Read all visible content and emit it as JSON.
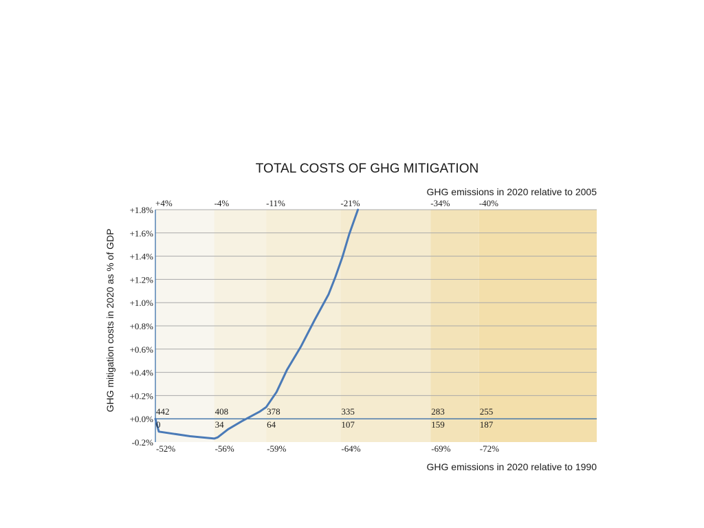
{
  "chart_data": {
    "type": "line",
    "title": "TOTAL COSTS OF GHG MITIGATION",
    "ylabel": "GHG mitigation costs in 2020 as % of GDP",
    "xlabel_top": "GHG emissions in 2020 relative to 2005",
    "xlabel_bottom": "GHG emissions in 2020 relative to 1990",
    "ylim": [
      -0.2,
      1.8
    ],
    "yticks": [
      "+1.8%",
      "+1.6%",
      "+1.4%",
      "+1.2%",
      "+1.0%",
      "+0.8%",
      "+0.6%",
      "+0.4%",
      "+0.2%",
      "+0.0%",
      "-0.2%"
    ],
    "ytick_values": [
      1.8,
      1.6,
      1.4,
      1.2,
      1.0,
      0.8,
      0.6,
      0.4,
      0.2,
      0.0,
      -0.2
    ],
    "xlim": [
      0,
      255
    ],
    "grid": true,
    "band_colors": [
      "#f8f6ef",
      "#f7f2e2",
      "#f6efd9",
      "#f5ebcf",
      "#f3e3b8",
      "#f3dfab"
    ],
    "line_color": "#4a7ab7",
    "reference_points": [
      {
        "x": 0,
        "top_label": "+4%",
        "bottom_label": "-52%",
        "upper_value": "442",
        "lower_value": "0"
      },
      {
        "x": 34,
        "top_label": "-4%",
        "bottom_label": "-56%",
        "upper_value": "408",
        "lower_value": "34"
      },
      {
        "x": 64,
        "top_label": "-11%",
        "bottom_label": "-59%",
        "upper_value": "378",
        "lower_value": "64"
      },
      {
        "x": 107,
        "top_label": "-21%",
        "bottom_label": "-64%",
        "upper_value": "335",
        "lower_value": "107"
      },
      {
        "x": 159,
        "top_label": "-34%",
        "bottom_label": "-69%",
        "upper_value": "283",
        "lower_value": "159"
      },
      {
        "x": 187,
        "top_label": "-40%",
        "bottom_label": "-72%",
        "upper_value": "255",
        "lower_value": "187"
      }
    ],
    "series": [
      {
        "x": [
          0,
          2,
          20,
          34,
          36,
          42,
          50,
          60,
          64,
          70,
          76,
          84,
          92,
          100,
          104,
          108,
          112,
          117
        ],
        "y": [
          0.0,
          -0.11,
          -0.15,
          -0.17,
          -0.16,
          -0.09,
          -0.02,
          0.06,
          0.1,
          0.23,
          0.42,
          0.62,
          0.85,
          1.07,
          1.22,
          1.39,
          1.59,
          1.8
        ]
      }
    ]
  }
}
